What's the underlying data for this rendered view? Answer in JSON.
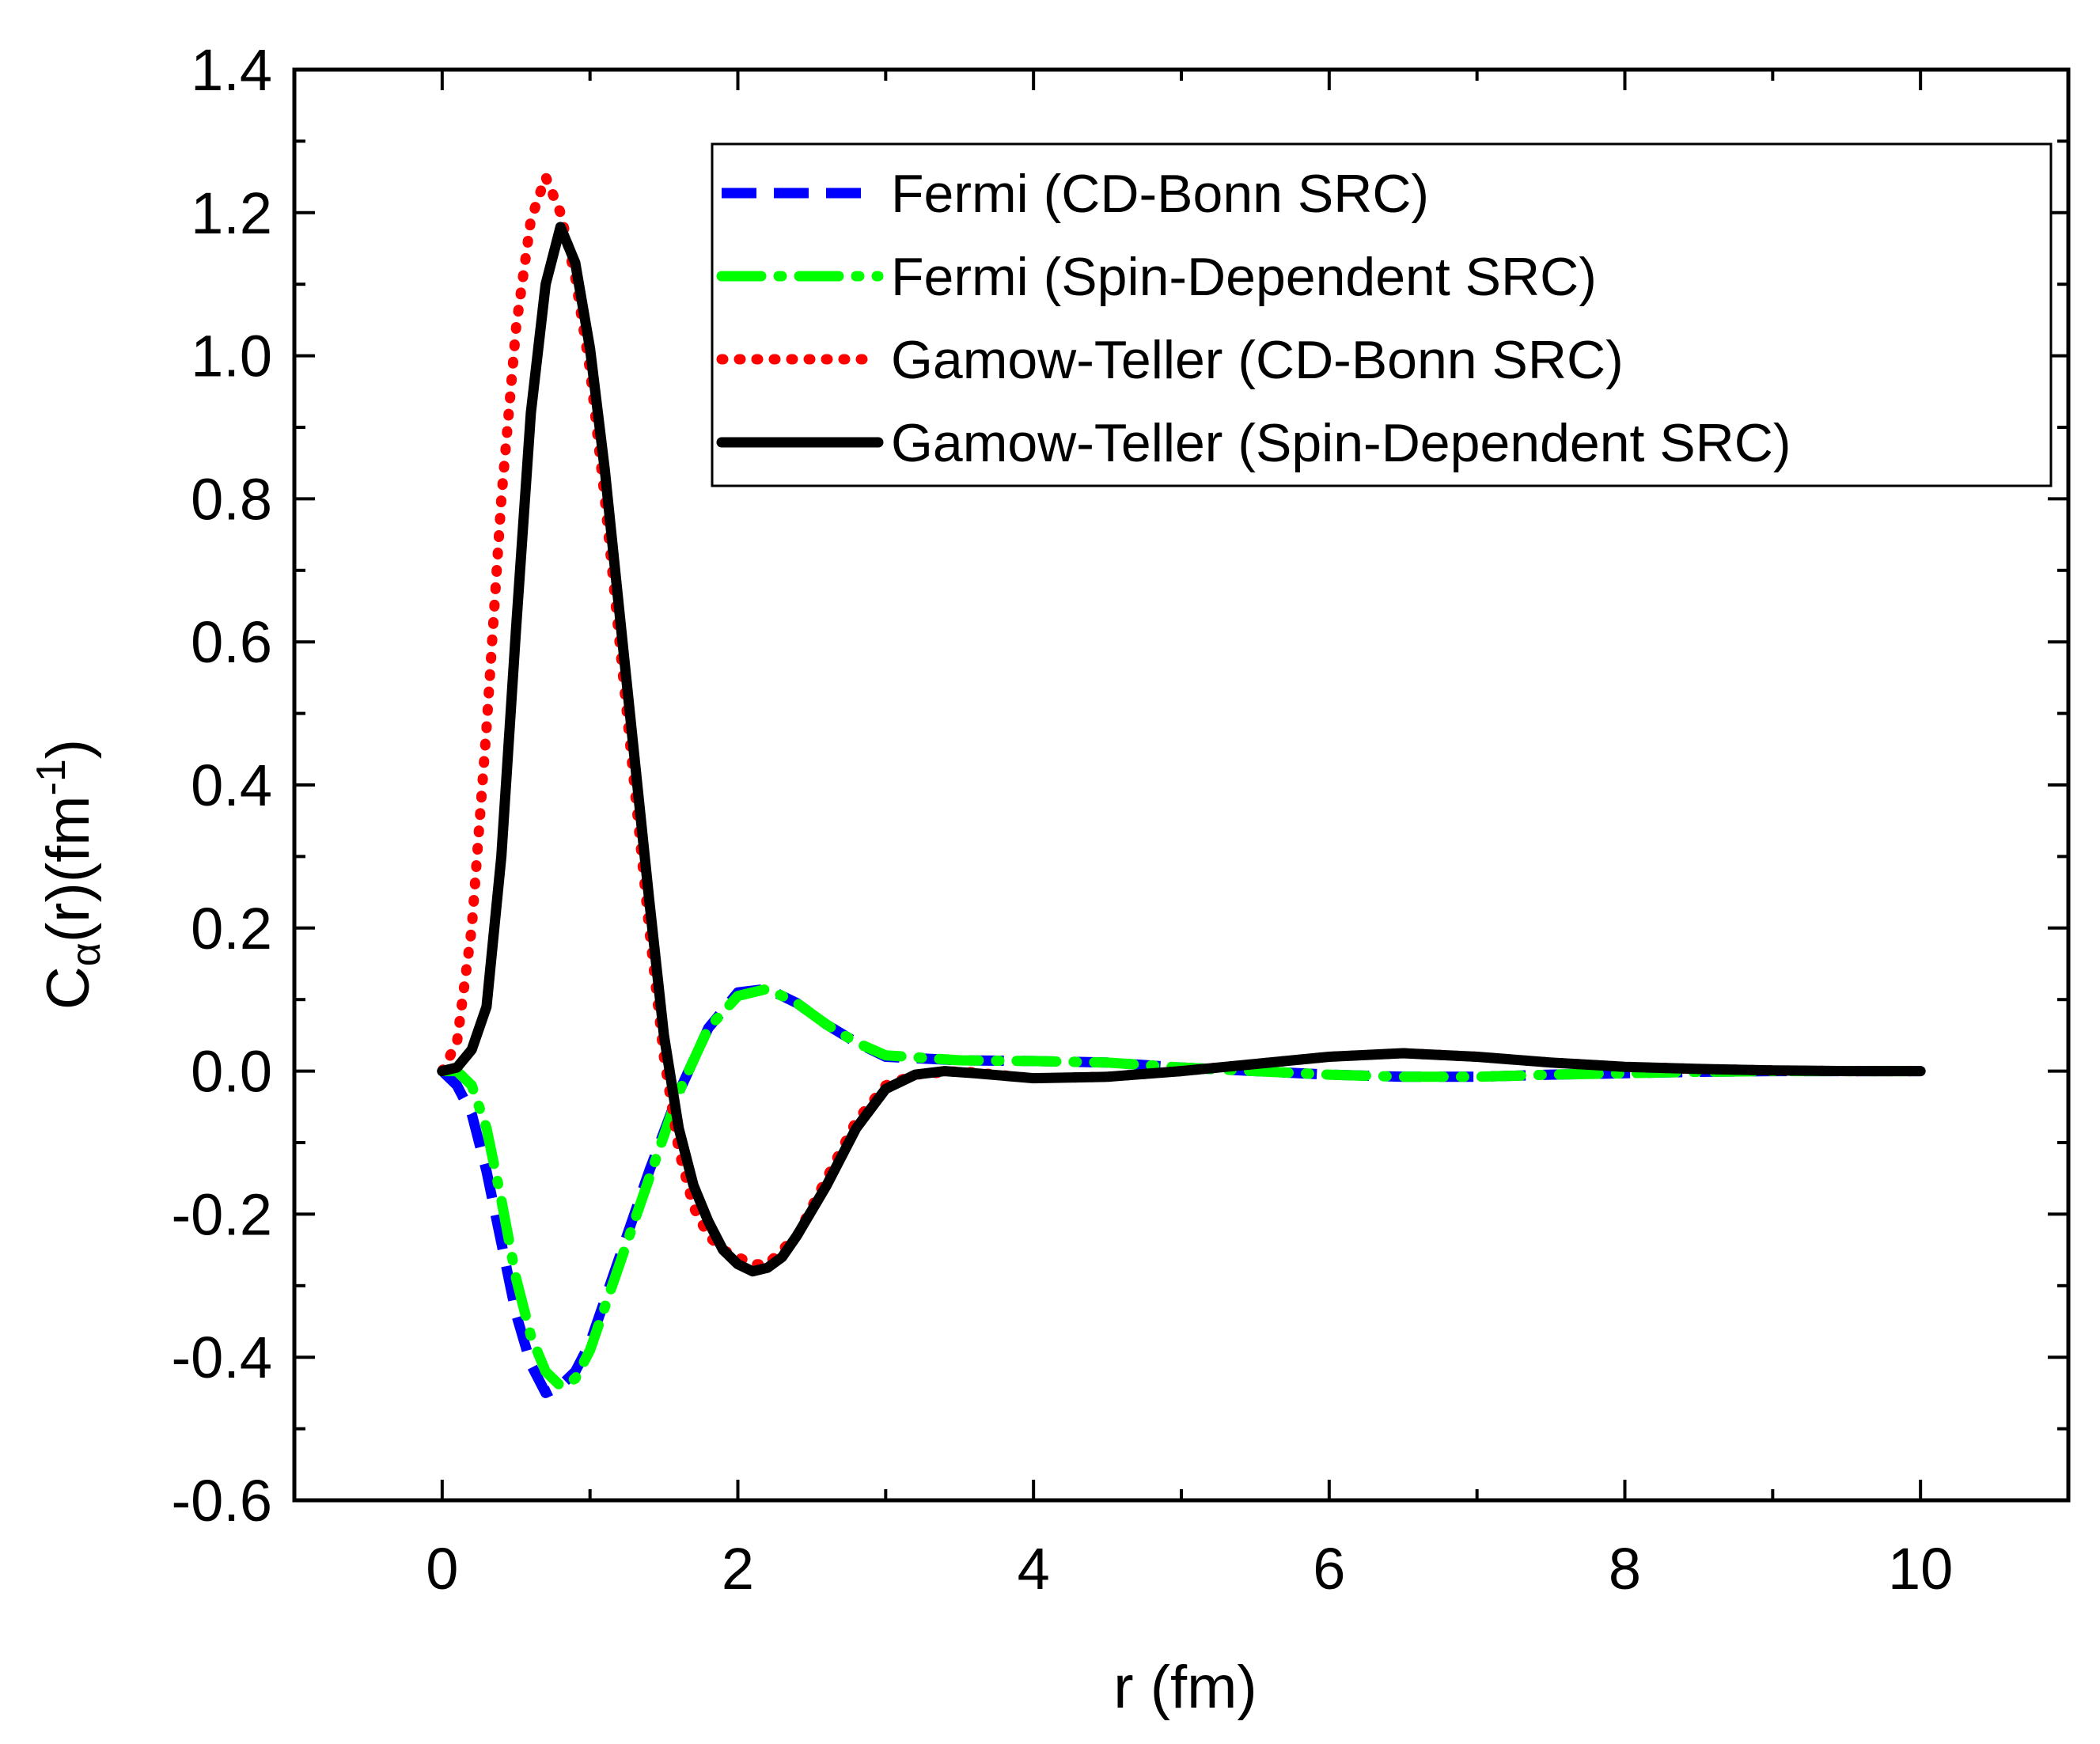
{
  "chart_data": {
    "type": "line",
    "title": "",
    "xlabel": "r (fm)",
    "ylabel": {
      "base": "C",
      "sub": "α",
      "mid": "(r)(fm",
      "sup": "-1",
      "end": ")"
    },
    "xlim": [
      -1,
      11
    ],
    "ylim": [
      -0.6,
      1.4
    ],
    "xticks": [
      0,
      2,
      4,
      6,
      8,
      10
    ],
    "xtick_labels": [
      "0",
      "2",
      "4",
      "6",
      "8",
      "10"
    ],
    "yticks": [
      -0.6,
      -0.4,
      -0.2,
      0.0,
      0.2,
      0.4,
      0.6,
      0.8,
      1.0,
      1.2,
      1.4
    ],
    "ytick_labels": [
      "-0.6",
      "-0.4",
      "-0.2",
      "0.0",
      "0.2",
      "0.4",
      "0.6",
      "0.8",
      "1.0",
      "1.2",
      "1.4"
    ],
    "grid": false,
    "legend_position": "top-right",
    "series": [
      {
        "name": "Fermi (CD-Bonn SRC)",
        "color": "#0000ff",
        "style": "dash",
        "x": [
          0,
          0.1,
          0.2,
          0.3,
          0.4,
          0.5,
          0.6,
          0.7,
          0.8,
          0.9,
          1.0,
          1.2,
          1.4,
          1.6,
          1.8,
          2.0,
          2.2,
          2.4,
          2.6,
          2.8,
          3.0,
          3.5,
          4.0,
          4.5,
          5.0,
          5.5,
          6.0,
          6.5,
          7.0,
          7.5,
          8.0,
          8.5,
          9.0,
          9.5,
          10.0
        ],
        "y": [
          0,
          -0.02,
          -0.06,
          -0.14,
          -0.24,
          -0.34,
          -0.41,
          -0.45,
          -0.44,
          -0.42,
          -0.38,
          -0.26,
          -0.14,
          -0.03,
          0.06,
          0.11,
          0.115,
          0.095,
          0.065,
          0.04,
          0.02,
          0.015,
          0.014,
          0.012,
          0.005,
          0.0,
          -0.005,
          -0.008,
          -0.008,
          -0.005,
          -0.003,
          -0.001,
          0.0,
          0.0,
          0.0
        ]
      },
      {
        "name": "Fermi (Spin-Dependent SRC)",
        "color": "#00ff00",
        "style": "dashdot",
        "x": [
          0,
          0.1,
          0.2,
          0.3,
          0.4,
          0.5,
          0.6,
          0.7,
          0.8,
          0.9,
          1.0,
          1.2,
          1.4,
          1.6,
          1.8,
          2.0,
          2.2,
          2.4,
          2.6,
          2.8,
          3.0,
          3.5,
          4.0,
          4.5,
          5.0,
          5.5,
          6.0,
          6.5,
          7.0,
          7.5,
          8.0,
          8.5,
          9.0,
          9.5,
          10.0
        ],
        "y": [
          0,
          0.0,
          -0.02,
          -0.08,
          -0.18,
          -0.29,
          -0.37,
          -0.42,
          -0.44,
          -0.43,
          -0.39,
          -0.27,
          -0.15,
          -0.03,
          0.06,
          0.105,
          0.115,
          0.095,
          0.065,
          0.04,
          0.022,
          0.015,
          0.014,
          0.012,
          0.005,
          0.0,
          -0.005,
          -0.008,
          -0.008,
          -0.005,
          -0.003,
          -0.001,
          0.0,
          0.0,
          0.0
        ]
      },
      {
        "name": "Gamow-Teller (CD-Bonn SRC)",
        "color": "#ff0000",
        "style": "dot",
        "x": [
          0,
          0.1,
          0.2,
          0.3,
          0.4,
          0.5,
          0.6,
          0.7,
          0.8,
          0.9,
          1.0,
          1.1,
          1.2,
          1.3,
          1.4,
          1.5,
          1.6,
          1.7,
          1.8,
          1.9,
          2.0,
          2.1,
          2.2,
          2.4,
          2.6,
          2.8,
          3.0,
          3.2,
          3.5,
          4.0,
          4.5,
          5.0,
          5.5,
          6.0,
          6.5,
          7.0,
          7.5,
          8.0,
          8.5,
          9.0,
          9.5,
          10.0
        ],
        "y": [
          0,
          0.04,
          0.2,
          0.48,
          0.8,
          1.04,
          1.19,
          1.25,
          1.2,
          1.11,
          0.98,
          0.8,
          0.6,
          0.4,
          0.2,
          0.02,
          -0.11,
          -0.19,
          -0.23,
          -0.25,
          -0.26,
          -0.27,
          -0.27,
          -0.23,
          -0.15,
          -0.07,
          -0.02,
          -0.005,
          0.0,
          -0.01,
          -0.008,
          0.0,
          0.01,
          0.02,
          0.025,
          0.02,
          0.012,
          0.006,
          0.003,
          0.001,
          0.0,
          0.0
        ]
      },
      {
        "name": "Gamow-Teller (Spin-Dependent SRC)",
        "color": "#000000",
        "style": "solid",
        "x": [
          0,
          0.1,
          0.2,
          0.3,
          0.4,
          0.5,
          0.6,
          0.7,
          0.8,
          0.9,
          1.0,
          1.1,
          1.2,
          1.3,
          1.4,
          1.5,
          1.6,
          1.7,
          1.8,
          1.9,
          2.0,
          2.1,
          2.2,
          2.3,
          2.4,
          2.6,
          2.8,
          3.0,
          3.2,
          3.4,
          3.6,
          4.0,
          4.5,
          5.0,
          5.5,
          6.0,
          6.5,
          7.0,
          7.5,
          8.0,
          8.5,
          9.0,
          9.5,
          10.0
        ],
        "y": [
          0,
          0.005,
          0.03,
          0.09,
          0.3,
          0.62,
          0.92,
          1.1,
          1.18,
          1.13,
          1.01,
          0.84,
          0.64,
          0.44,
          0.24,
          0.05,
          -0.08,
          -0.16,
          -0.21,
          -0.25,
          -0.27,
          -0.28,
          -0.275,
          -0.26,
          -0.23,
          -0.16,
          -0.08,
          -0.025,
          -0.005,
          0.0,
          -0.003,
          -0.01,
          -0.008,
          0.0,
          0.01,
          0.02,
          0.025,
          0.02,
          0.012,
          0.006,
          0.003,
          0.001,
          0.0,
          0.0
        ]
      }
    ]
  }
}
